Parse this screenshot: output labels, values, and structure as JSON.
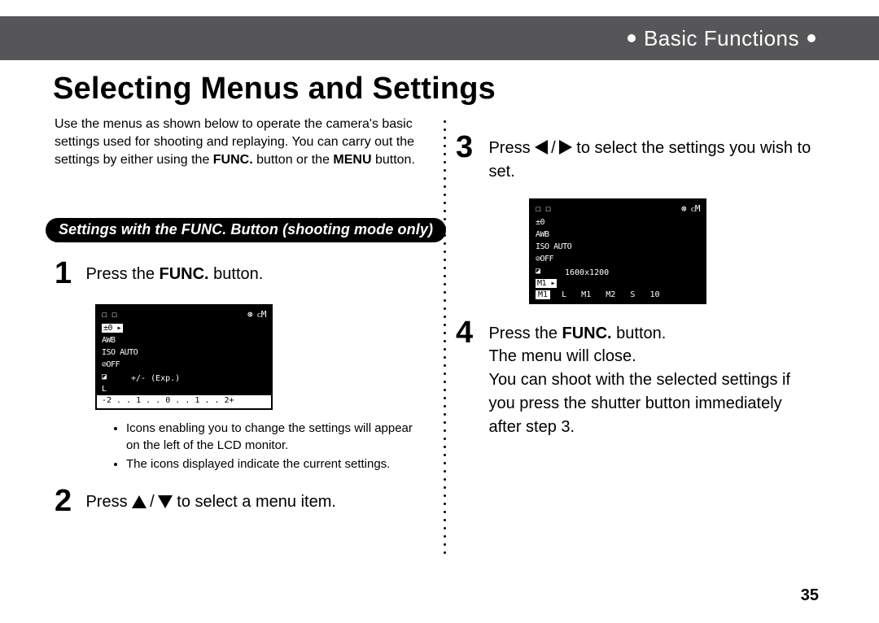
{
  "header": {
    "section": "Basic Functions"
  },
  "title": "Selecting Menus and Settings",
  "intro": {
    "pre": "Use the menus as shown below to operate the camera's basic settings used for shooting and replaying.  You can carry out the settings by either using the ",
    "b1": "FUNC.",
    "mid": " button or the ",
    "b2": "MENU",
    "post": " button."
  },
  "pill": "Settings with the FUNC. Button (shooting mode only)",
  "step1": {
    "num": "1",
    "pre": "Press the ",
    "bold": "FUNC.",
    "post": " button.",
    "notes": [
      "Icons enabling you to change the settings will appear on the left of the LCD monitor.",
      "The icons displayed indicate the current settings."
    ],
    "lcd": {
      "top_icons": [
        "☐ ☐",
        "⊛",
        "ᴄM"
      ],
      "left": [
        "±0 ▸",
        "AWB",
        "ISO AUTO",
        "⊘OFF",
        "◪",
        "L"
      ],
      "mid_label": "+/-  (Exp.)",
      "bottom_scale": "-2 . . 1 . . 0 . . 1 . . 2+"
    }
  },
  "step2": {
    "num": "2",
    "pre": "Press ",
    "post": " to select a menu item."
  },
  "step3": {
    "num": "3",
    "pre": "Press ",
    "post": " to select the settings you wish to set.",
    "lcd": {
      "top_icons": [
        "☐ ☐",
        "⊛",
        "ᴄM"
      ],
      "left": [
        "±0",
        "AWB",
        "ISO AUTO",
        "⊘OFF",
        "◪",
        "M1 ▸"
      ],
      "mid_label": "1600x1200",
      "bottom_labels": [
        "M1",
        "L",
        "M1",
        "M2",
        "S",
        "10"
      ]
    }
  },
  "step4": {
    "num": "4",
    "pre": "Press the ",
    "bold": "FUNC.",
    "line1_post": " button.",
    "line2": "The menu will close.",
    "line3": "You can shoot with the selected settings if you press the shutter button immediately after step 3."
  },
  "page_number": "35",
  "colors": {
    "topbar": "#565658",
    "pill_bg": "#000000",
    "text": "#000000",
    "lcd_bg": "#000000"
  }
}
